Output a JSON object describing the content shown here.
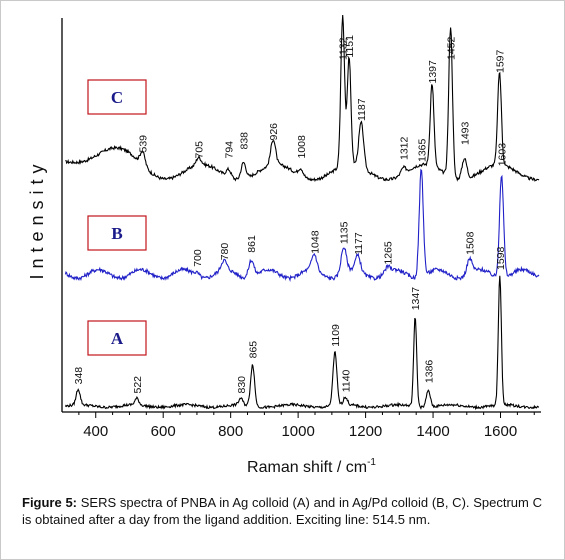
{
  "chart_data": {
    "type": "line",
    "xlabel": "Raman shift / cm",
    "xlabel_sup": "-1",
    "ylabel": "Intensity",
    "xlim": [
      300,
      1720
    ],
    "xticks": [
      400,
      600,
      800,
      1000,
      1200,
      1400,
      1600
    ],
    "xtick_labels": [
      "400",
      "600",
      "800",
      "1000",
      "1200",
      "1400",
      "1600"
    ],
    "series": [
      {
        "name": "C",
        "color": "#000000",
        "peak_labels": [
          "539",
          "705",
          "794",
          "838",
          "926",
          "1008",
          "1132",
          "1151",
          "1187",
          "1312",
          "1397",
          "1452",
          "1493",
          "1597"
        ],
        "peaks": [
          {
            "x": 539,
            "h": 0.09
          },
          {
            "x": 705,
            "h": 0.05
          },
          {
            "x": 794,
            "h": 0.05
          },
          {
            "x": 838,
            "h": 0.11
          },
          {
            "x": 926,
            "h": 0.17
          },
          {
            "x": 1008,
            "h": 0.05
          },
          {
            "x": 1132,
            "h": 1.0
          },
          {
            "x": 1151,
            "h": 0.72
          },
          {
            "x": 1187,
            "h": 0.3
          },
          {
            "x": 1312,
            "h": 0.04
          },
          {
            "x": 1397,
            "h": 0.55
          },
          {
            "x": 1452,
            "h": 1.0
          },
          {
            "x": 1493,
            "h": 0.14
          },
          {
            "x": 1597,
            "h": 0.62
          }
        ]
      },
      {
        "name": "B",
        "color": "#2020c8",
        "peak_labels": [
          "700",
          "780",
          "861",
          "1048",
          "1135",
          "1177",
          "1265",
          "1365",
          "1508",
          "1603"
        ],
        "peaks": [
          {
            "x": 700,
            "h": 0.03
          },
          {
            "x": 780,
            "h": 0.09
          },
          {
            "x": 861,
            "h": 0.16
          },
          {
            "x": 1048,
            "h": 0.15
          },
          {
            "x": 1135,
            "h": 0.24
          },
          {
            "x": 1177,
            "h": 0.14
          },
          {
            "x": 1265,
            "h": 0.05
          },
          {
            "x": 1365,
            "h": 1.0
          },
          {
            "x": 1508,
            "h": 0.14
          },
          {
            "x": 1603,
            "h": 0.96
          }
        ]
      },
      {
        "name": "A",
        "color": "#000000",
        "peak_labels": [
          "348",
          "522",
          "830",
          "865",
          "1109",
          "1140",
          "1347",
          "1386",
          "1598"
        ],
        "peaks": [
          {
            "x": 348,
            "h": 0.12
          },
          {
            "x": 522,
            "h": 0.05
          },
          {
            "x": 830,
            "h": 0.05
          },
          {
            "x": 865,
            "h": 0.32
          },
          {
            "x": 1109,
            "h": 0.41
          },
          {
            "x": 1140,
            "h": 0.06
          },
          {
            "x": 1347,
            "h": 0.69
          },
          {
            "x": 1386,
            "h": 0.13
          },
          {
            "x": 1598,
            "h": 1.0
          }
        ]
      }
    ]
  },
  "caption": {
    "label": "Figure 5:",
    "text": "SERS spectra of PNBA in Ag colloid (A) and in Ag/Pd colloid (B, C). Spectrum C is obtained after a day from the ligand addition. Exciting line: 514.5 nm."
  }
}
